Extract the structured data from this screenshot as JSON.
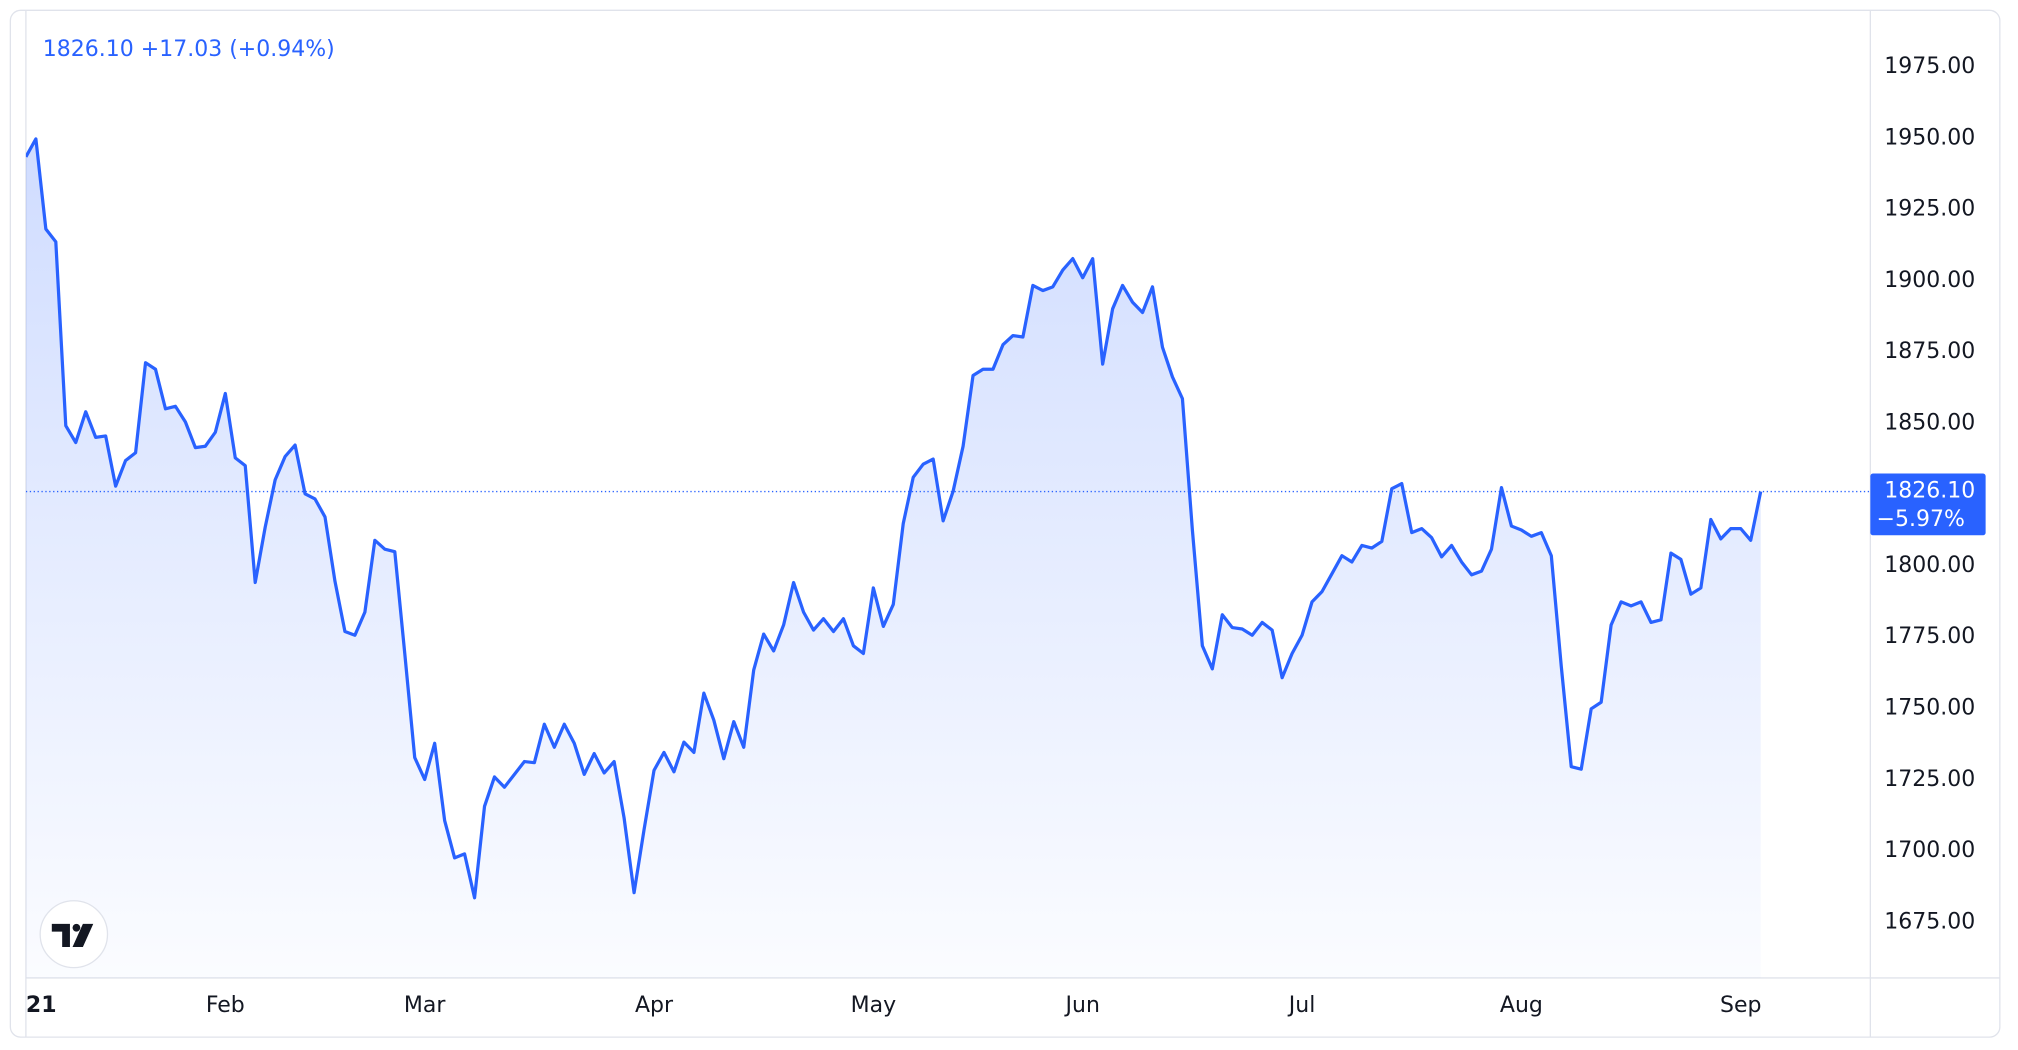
{
  "chart_data": {
    "type": "area",
    "price_label": "1826.10",
    "change_label": "+17.03",
    "change_pct_label": "(+0.94%)",
    "last_value_label": "1826.10",
    "last_change_label": "−5.97%",
    "last_value": 1826.1,
    "color": "#2962ff",
    "grid": false,
    "xlim": [
      0,
      185
    ],
    "xticks": [
      {
        "value": 1,
        "label": "21"
      },
      {
        "value": 20,
        "label": "Feb"
      },
      {
        "value": 40,
        "label": "Mar"
      },
      {
        "value": 63,
        "label": "Apr"
      },
      {
        "value": 85,
        "label": "May"
      },
      {
        "value": 106,
        "label": "Jun"
      },
      {
        "value": 128,
        "label": "Jul"
      },
      {
        "value": 150,
        "label": "Aug"
      },
      {
        "value": 172,
        "label": "Sep"
      }
    ],
    "ylim": [
      1655.5,
      1994
    ],
    "yticks": [
      {
        "value": 1675,
        "label": "1675.00"
      },
      {
        "value": 1700,
        "label": "1700.00"
      },
      {
        "value": 1725,
        "label": "1725.00"
      },
      {
        "value": 1750,
        "label": "1750.00"
      },
      {
        "value": 1775,
        "label": "1775.00"
      },
      {
        "value": 1800,
        "label": "1800.00"
      },
      {
        "value": 1825,
        "label": "1825.00"
      },
      {
        "value": 1850,
        "label": "1850.00"
      },
      {
        "value": 1875,
        "label": "1875.00"
      },
      {
        "value": 1900,
        "label": "1900.00"
      },
      {
        "value": 1925,
        "label": "1925.00"
      },
      {
        "value": 1950,
        "label": "1950.00"
      },
      {
        "value": 1975,
        "label": "1975.00"
      }
    ],
    "values": [
      1943.5,
      1949.8,
      1918.2,
      1913.7,
      1849.2,
      1843.3,
      1854.1,
      1845.1,
      1845.6,
      1828.0,
      1837.0,
      1839.7,
      1871.3,
      1869.0,
      1855.1,
      1856.0,
      1850.5,
      1841.5,
      1842.0,
      1846.9,
      1860.5,
      1837.9,
      1835.2,
      1794.2,
      1813.6,
      1830.2,
      1838.4,
      1842.4,
      1825.3,
      1823.5,
      1817.2,
      1794.6,
      1777.0,
      1775.7,
      1783.8,
      1809.0,
      1805.9,
      1805.0,
      1769.3,
      1732.8,
      1725.1,
      1737.8,
      1710.7,
      1697.6,
      1699.0,
      1683.6,
      1715.7,
      1726.0,
      1722.4,
      1726.9,
      1731.4,
      1731.0,
      1744.5,
      1736.4,
      1744.5,
      1737.8,
      1726.9,
      1734.2,
      1727.4,
      1731.4,
      1711.6,
      1685.4,
      1707.5,
      1728.3,
      1734.6,
      1727.8,
      1738.2,
      1734.6,
      1755.4,
      1745.9,
      1732.4,
      1745.4,
      1736.4,
      1763.5,
      1776.1,
      1770.2,
      1779.3,
      1794.2,
      1783.8,
      1777.5,
      1781.5,
      1777.0,
      1781.5,
      1772.0,
      1769.3,
      1792.3,
      1778.8,
      1786.5,
      1814.9,
      1831.1,
      1835.7,
      1837.5,
      1815.8,
      1826.2,
      1842.0,
      1866.8,
      1869.0,
      1869.0,
      1877.6,
      1880.8,
      1880.3,
      1898.4,
      1896.6,
      1897.9,
      1903.8,
      1907.8,
      1901.1,
      1907.8,
      1870.8,
      1890.2,
      1898.4,
      1892.5,
      1888.9,
      1897.9,
      1876.7,
      1866.3,
      1858.7,
      1812.6,
      1772.0,
      1763.9,
      1782.9,
      1778.4,
      1777.9,
      1775.7,
      1780.2,
      1777.5,
      1760.8,
      1769.3,
      1775.7,
      1787.4,
      1791.0,
      1797.3,
      1803.6,
      1801.4,
      1807.2,
      1806.3,
      1808.6,
      1827.1,
      1828.9,
      1811.7,
      1813.1,
      1809.9,
      1803.2,
      1807.2,
      1801.4,
      1796.9,
      1798.2,
      1805.9,
      1827.5,
      1814.0,
      1812.6,
      1810.4,
      1811.7,
      1803.6,
      1764.8,
      1729.6,
      1728.7,
      1749.9,
      1752.2,
      1779.3,
      1787.4,
      1786.0,
      1787.4,
      1780.2,
      1781.1,
      1804.5,
      1802.3,
      1790.1,
      1792.3,
      1816.3,
      1809.5,
      1813.1,
      1813.1,
      1809.0,
      1826.1
    ]
  }
}
